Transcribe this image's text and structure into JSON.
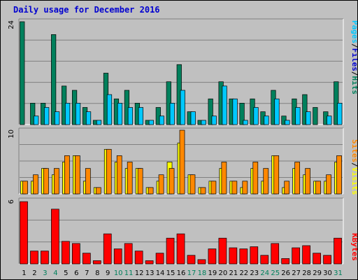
{
  "title": "Daily usage for December 2016",
  "colors": {
    "hits": "#00805c",
    "files": "#00c8ff",
    "visits": "#ffff00",
    "sites": "#ff8800",
    "kbytes": "#ff0000",
    "weekend_label": "#00805c",
    "separator": "#000000"
  },
  "chart_data": [
    {
      "type": "bar",
      "panel": "pages-files-hits",
      "x": [
        1,
        2,
        3,
        4,
        5,
        6,
        7,
        8,
        9,
        10,
        11,
        12,
        13,
        14,
        15,
        16,
        17,
        18,
        19,
        20,
        21,
        22,
        23,
        24,
        25,
        26,
        27,
        28,
        29,
        30,
        31
      ],
      "x_tick_labels": [
        "1",
        "2",
        "3",
        "4",
        "5",
        "6",
        "7",
        "8",
        "9",
        "10",
        "11",
        "12",
        "13",
        "14",
        "15",
        "16",
        "17",
        "18",
        "19",
        "20",
        "21",
        "22",
        "23",
        "24",
        "25",
        "26",
        "27",
        "28",
        "29",
        "30",
        "31"
      ],
      "weekend_days": [
        3,
        4,
        10,
        11,
        17,
        18,
        24,
        25,
        31
      ],
      "ylim": [
        0,
        24
      ],
      "y_tick_label": "24",
      "side_labels": [
        "Pages",
        "Files",
        "Hits"
      ],
      "series": [
        {
          "name": "Hits",
          "color": "#00805c",
          "values": [
            24,
            5,
            5,
            21,
            9,
            8,
            4,
            1,
            12,
            6,
            8,
            5,
            1,
            4,
            10,
            14,
            3,
            1,
            6,
            10,
            6,
            5,
            6,
            3,
            8,
            2,
            6,
            7,
            4,
            3,
            10
          ]
        },
        {
          "name": "Files",
          "color": "#00c8ff",
          "values": [
            0,
            2,
            4,
            3,
            5,
            5,
            3,
            1,
            7,
            5,
            4,
            4,
            1,
            2,
            5,
            8,
            3,
            1,
            2,
            9,
            6,
            1,
            4,
            2,
            6,
            1,
            4,
            3,
            0,
            2,
            5
          ]
        },
        {
          "name": "Pages",
          "color": "#00c8ff",
          "values": [
            0,
            0,
            0,
            0,
            0,
            0,
            0,
            0,
            0,
            0,
            0,
            0,
            0,
            0,
            0,
            0,
            0,
            0,
            0,
            0,
            0,
            0,
            0,
            0,
            0,
            0,
            0,
            0,
            0,
            0,
            0
          ]
        }
      ]
    },
    {
      "type": "bar",
      "panel": "sites-visits",
      "x": [
        1,
        2,
        3,
        4,
        5,
        6,
        7,
        8,
        9,
        10,
        11,
        12,
        13,
        14,
        15,
        16,
        17,
        18,
        19,
        20,
        21,
        22,
        23,
        24,
        25,
        26,
        27,
        28,
        29,
        30,
        31
      ],
      "ylim": [
        0,
        10
      ],
      "y_tick_label": "10",
      "side_labels": [
        "Sites",
        "Visits"
      ],
      "series": [
        {
          "name": "Visits",
          "color": "#ffff00",
          "values": [
            2,
            2,
            4,
            3,
            5,
            6,
            2,
            1,
            7,
            5,
            4,
            4,
            1,
            2,
            5,
            8,
            3,
            1,
            2,
            4,
            2,
            1,
            4,
            2,
            6,
            1,
            4,
            3,
            2,
            2,
            5
          ]
        },
        {
          "name": "Sites",
          "color": "#ff8800",
          "values": [
            2,
            3,
            4,
            4,
            6,
            6,
            4,
            1,
            7,
            6,
            5,
            4,
            1,
            3,
            4,
            10,
            3,
            1,
            2,
            5,
            2,
            2,
            5,
            4,
            6,
            2,
            5,
            4,
            2,
            3,
            6
          ]
        }
      ]
    },
    {
      "type": "bar",
      "panel": "kbytes",
      "x": [
        1,
        2,
        3,
        4,
        5,
        6,
        7,
        8,
        9,
        10,
        11,
        12,
        13,
        14,
        15,
        16,
        17,
        18,
        19,
        20,
        21,
        22,
        23,
        24,
        25,
        26,
        27,
        28,
        29,
        30,
        31
      ],
      "ylim": [
        0,
        6
      ],
      "y_tick_label": "6",
      "side_labels": [
        "KBytes"
      ],
      "series": [
        {
          "name": "KBytes",
          "color": "#ff0000",
          "values": [
            5.8,
            1.2,
            1.2,
            5.1,
            2.1,
            1.9,
            1.0,
            0.3,
            2.8,
            1.4,
            1.9,
            1.2,
            0.3,
            1.0,
            2.4,
            2.8,
            0.8,
            0.4,
            1.4,
            2.4,
            1.5,
            1.4,
            1.6,
            0.8,
            1.9,
            0.5,
            1.5,
            1.7,
            1.0,
            0.8,
            2.4
          ]
        }
      ]
    }
  ]
}
